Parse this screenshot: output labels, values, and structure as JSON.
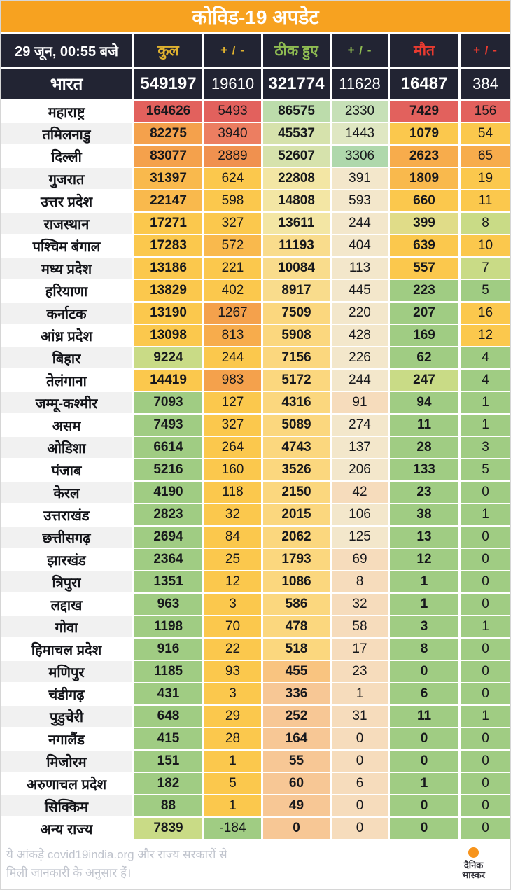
{
  "title": "कोविड-19 अपडेट",
  "header": {
    "date_label": "29 जून, 00:55 बजे",
    "columns": [
      {
        "label": "कुल",
        "color": "#e0b22f"
      },
      {
        "label": "+ / -",
        "color": "#e0b22f"
      },
      {
        "label": "ठीक हुए",
        "color": "#8fbc52"
      },
      {
        "label": "+ / -",
        "color": "#8fbc52"
      },
      {
        "label": "मौत",
        "color": "#ea3b30"
      },
      {
        "label": "+ / -",
        "color": "#ea3b30"
      }
    ]
  },
  "india_row": {
    "name": "भारत",
    "values": [
      "549197",
      "19610",
      "321774",
      "11628",
      "16487",
      "384"
    ]
  },
  "palette": {
    "R": "#e2615d",
    "S": "#ec7e61",
    "O": "#f0914f",
    "O2": "#f4a14c",
    "LO": "#f7ac4c",
    "YO": "#f9b94d",
    "Y": "#fbc84d",
    "Yl": "#f9dc8c",
    "Y2": "#fbd77e",
    "PY": "#f3e6a4",
    "PO": "#f9c480",
    "P": "#f7c795",
    "C": "#f3e7cb",
    "PP": "#f6dcbc",
    "LG": "#bcdcab",
    "LGp": "#c6e0b7",
    "LG2": "#afd8ac",
    "LYG": "#d6e2ac",
    "PG": "#dfe7c2",
    "YG": "#c9db86",
    "YGl": "#e0dc88",
    "G": "#a0cc83"
  },
  "chart_data": {
    "type": "table",
    "title": "कोविड-19 अपडेट",
    "columns": [
      "राज्य",
      "कुल",
      "+ / -",
      "ठीक हुए",
      "+ / -",
      "मौत",
      "+ / -"
    ],
    "india_total": [
      549197,
      19610,
      321774,
      11628,
      16487,
      384
    ],
    "rows": [
      {
        "name": "महाराष्ट्र",
        "values": [
          164626,
          5493,
          86575,
          2330,
          7429,
          156
        ],
        "colors": [
          "R",
          "R",
          "LG",
          "LGp",
          "R",
          "R"
        ]
      },
      {
        "name": "तमिलनाडु",
        "values": [
          82275,
          3940,
          45537,
          1443,
          1079,
          54
        ],
        "colors": [
          "O2",
          "S",
          "LYG",
          "PG",
          "Y",
          "Y"
        ]
      },
      {
        "name": "दिल्ली",
        "values": [
          83077,
          2889,
          52607,
          3306,
          2623,
          65
        ],
        "colors": [
          "O2",
          "O",
          "LYG",
          "LG2",
          "LO",
          "LO"
        ]
      },
      {
        "name": "गुजरात",
        "values": [
          31397,
          624,
          22808,
          391,
          1809,
          19
        ],
        "colors": [
          "YO",
          "Y",
          "PY",
          "C",
          "YO",
          "Y"
        ]
      },
      {
        "name": "उत्तर प्रदेश",
        "values": [
          22147,
          598,
          14808,
          593,
          660,
          11
        ],
        "colors": [
          "YO",
          "Y",
          "PY",
          "C",
          "Y",
          "Y"
        ]
      },
      {
        "name": "राजस्थान",
        "values": [
          17271,
          327,
          13611,
          244,
          399,
          8
        ],
        "colors": [
          "Y",
          "Y",
          "PY",
          "C",
          "YGl",
          "YG"
        ]
      },
      {
        "name": "पश्चिम बंगाल",
        "values": [
          17283,
          572,
          11193,
          404,
          639,
          10
        ],
        "colors": [
          "Y",
          "YO",
          "Yl",
          "C",
          "Y",
          "Y"
        ]
      },
      {
        "name": "मध्य प्रदेश",
        "values": [
          13186,
          221,
          10084,
          113,
          557,
          7
        ],
        "colors": [
          "Y",
          "Y",
          "Yl",
          "C",
          "Y",
          "YG"
        ]
      },
      {
        "name": "हरियाणा",
        "values": [
          13829,
          402,
          8917,
          445,
          223,
          5
        ],
        "colors": [
          "Y",
          "Y",
          "Yl",
          "C",
          "G",
          "G"
        ]
      },
      {
        "name": "कर्नाटक",
        "values": [
          13190,
          1267,
          7509,
          220,
          207,
          16
        ],
        "colors": [
          "Y",
          "O2",
          "Y2",
          "C",
          "G",
          "Y"
        ]
      },
      {
        "name": "आंध्र प्रदेश",
        "values": [
          13098,
          813,
          5908,
          428,
          169,
          12
        ],
        "colors": [
          "Y",
          "LO",
          "Y2",
          "C",
          "G",
          "Y"
        ]
      },
      {
        "name": "बिहार",
        "values": [
          9224,
          244,
          7156,
          226,
          62,
          4
        ],
        "colors": [
          "YG",
          "Y",
          "Y2",
          "C",
          "G",
          "G"
        ]
      },
      {
        "name": "तेलंगाना",
        "values": [
          14419,
          983,
          5172,
          244,
          247,
          4
        ],
        "colors": [
          "Y",
          "O2",
          "Y2",
          "C",
          "YG",
          "G"
        ]
      },
      {
        "name": "जम्मू-कश्मीर",
        "values": [
          7093,
          127,
          4316,
          91,
          94,
          1
        ],
        "colors": [
          "G",
          "Y",
          "Y2",
          "PP",
          "G",
          "G"
        ]
      },
      {
        "name": "असम",
        "values": [
          7493,
          327,
          5089,
          274,
          11,
          1
        ],
        "colors": [
          "G",
          "Y",
          "Y2",
          "C",
          "G",
          "G"
        ]
      },
      {
        "name": "ओडिशा",
        "values": [
          6614,
          264,
          4743,
          137,
          28,
          3
        ],
        "colors": [
          "G",
          "Y",
          "Y2",
          "C",
          "G",
          "G"
        ]
      },
      {
        "name": "पंजाब",
        "values": [
          5216,
          160,
          3526,
          206,
          133,
          5
        ],
        "colors": [
          "G",
          "Y",
          "Y2",
          "C",
          "G",
          "G"
        ]
      },
      {
        "name": "केरल",
        "values": [
          4190,
          118,
          2150,
          42,
          23,
          0
        ],
        "colors": [
          "G",
          "Y",
          "Y2",
          "PP",
          "G",
          "G"
        ]
      },
      {
        "name": "उत्तराखंड",
        "values": [
          2823,
          32,
          2015,
          106,
          38,
          1
        ],
        "colors": [
          "G",
          "Y",
          "Y2",
          "C",
          "G",
          "G"
        ]
      },
      {
        "name": "छत्तीसगढ़",
        "values": [
          2694,
          84,
          2062,
          125,
          13,
          0
        ],
        "colors": [
          "G",
          "Y",
          "Y2",
          "C",
          "G",
          "G"
        ]
      },
      {
        "name": "झारखंड",
        "values": [
          2364,
          25,
          1793,
          69,
          12,
          0
        ],
        "colors": [
          "G",
          "Y",
          "Y2",
          "PP",
          "G",
          "G"
        ]
      },
      {
        "name": "त्रिपुरा",
        "values": [
          1351,
          12,
          1086,
          8,
          1,
          0
        ],
        "colors": [
          "G",
          "Y",
          "Y2",
          "PP",
          "G",
          "G"
        ]
      },
      {
        "name": "लद्दाख",
        "values": [
          963,
          3,
          586,
          32,
          1,
          0
        ],
        "colors": [
          "G",
          "Y",
          "Y2",
          "PP",
          "G",
          "G"
        ]
      },
      {
        "name": "गोवा",
        "values": [
          1198,
          70,
          478,
          58,
          3,
          1
        ],
        "colors": [
          "G",
          "Y",
          "Y2",
          "PP",
          "G",
          "G"
        ]
      },
      {
        "name": "हिमाचल प्रदेश",
        "values": [
          916,
          22,
          518,
          17,
          8,
          0
        ],
        "colors": [
          "G",
          "Y",
          "Y2",
          "PP",
          "G",
          "G"
        ]
      },
      {
        "name": "मणिपुर",
        "values": [
          1185,
          93,
          455,
          23,
          0,
          0
        ],
        "colors": [
          "G",
          "Y",
          "PO",
          "PP",
          "G",
          "G"
        ]
      },
      {
        "name": "चंडीगढ़",
        "values": [
          431,
          3,
          336,
          1,
          6,
          0
        ],
        "colors": [
          "G",
          "Y",
          "P",
          "PP",
          "G",
          "G"
        ]
      },
      {
        "name": "पुडुचेरी",
        "values": [
          648,
          29,
          252,
          31,
          11,
          1
        ],
        "colors": [
          "G",
          "Y",
          "P",
          "PP",
          "G",
          "G"
        ]
      },
      {
        "name": "नगालैंड",
        "values": [
          415,
          28,
          164,
          0,
          0,
          0
        ],
        "colors": [
          "G",
          "Y",
          "P",
          "PP",
          "G",
          "G"
        ]
      },
      {
        "name": "मिजोरम",
        "values": [
          151,
          1,
          55,
          0,
          0,
          0
        ],
        "colors": [
          "G",
          "Y",
          "P",
          "PP",
          "G",
          "G"
        ]
      },
      {
        "name": "अरुणाचल प्रदेश",
        "values": [
          182,
          5,
          60,
          6,
          1,
          0
        ],
        "colors": [
          "G",
          "Y",
          "P",
          "PP",
          "G",
          "G"
        ]
      },
      {
        "name": "सिक्किम",
        "values": [
          88,
          1,
          49,
          0,
          0,
          0
        ],
        "colors": [
          "G",
          "Y",
          "P",
          "PP",
          "G",
          "G"
        ]
      },
      {
        "name": "अन्य राज्य",
        "values": [
          7839,
          -184,
          0,
          0,
          0,
          0
        ],
        "colors": [
          "YG",
          "G",
          "P",
          "PP",
          "G",
          "G"
        ]
      }
    ]
  },
  "footer": {
    "note_line1": "ये आंकड़े covid19india.org और राज्य सरकारों से",
    "note_line2": "मिली जानकारी के अनुसार हैं।",
    "logo_top": "दैनिक",
    "logo_bottom": "भास्कर",
    "logo_dot_color": "#f7941d"
  },
  "colors": {
    "title_bg": "#f7a220",
    "dark_bg": "#222433",
    "row_alt": "#f1f1f1",
    "row_bg": "#ffffff",
    "note_text": "#c0c4cd",
    "border": "#d6d6d6"
  }
}
